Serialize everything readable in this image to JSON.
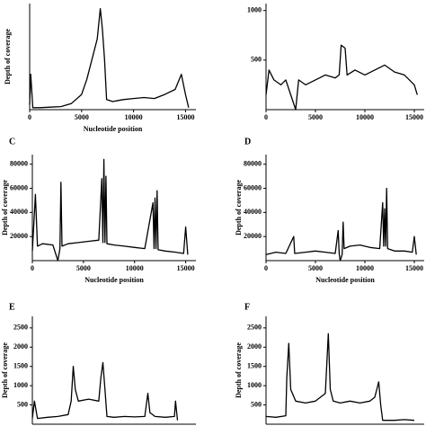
{
  "chart_data": [
    {
      "type": "line",
      "y_label": "Depth of coverage",
      "x_label": "Nucleotide position",
      "color": "#000000",
      "xlim": [
        0,
        16000
      ],
      "ylim": [
        0,
        1050
      ],
      "xticks": [
        0,
        5000,
        10000,
        15000
      ],
      "x": [
        0,
        100,
        300,
        1000,
        2000,
        3000,
        4000,
        5000,
        5500,
        6000,
        6500,
        6800,
        7000,
        7200,
        7400,
        8000,
        9000,
        10000,
        11000,
        12000,
        13000,
        14000,
        14600,
        15000,
        15300
      ],
      "values": [
        50,
        350,
        20,
        20,
        25,
        30,
        60,
        150,
        300,
        500,
        700,
        1000,
        800,
        500,
        100,
        80,
        100,
        110,
        120,
        110,
        150,
        200,
        350,
        150,
        20
      ]
    },
    {
      "type": "line",
      "color": "#000000",
      "xlim": [
        0,
        16000
      ],
      "ylim": [
        0,
        1070
      ],
      "xticks": [
        0,
        5000,
        10000,
        15000
      ],
      "yticks": [
        500,
        1000
      ],
      "x": [
        0,
        300,
        800,
        1500,
        2000,
        2500,
        3000,
        3300,
        4000,
        5000,
        6000,
        7000,
        7400,
        7600,
        8000,
        8200,
        9000,
        10000,
        11000,
        12000,
        13000,
        14000,
        15000,
        15300
      ],
      "values": [
        150,
        400,
        300,
        250,
        300,
        150,
        0,
        300,
        250,
        300,
        350,
        320,
        350,
        650,
        620,
        350,
        400,
        350,
        400,
        450,
        380,
        350,
        250,
        150
      ]
    },
    {
      "type": "line",
      "title": "C",
      "y_label": "Depth of coverage",
      "x_label": "Nucleotide position",
      "color": "#000000",
      "xlim": [
        0,
        16000
      ],
      "ylim": [
        0,
        88000
      ],
      "xticks": [
        0,
        5000,
        10000,
        15000
      ],
      "yticks": [
        20000,
        40000,
        60000,
        80000
      ],
      "x": [
        0,
        300,
        500,
        1000,
        2000,
        2500,
        2700,
        2800,
        2900,
        3500,
        4500,
        5500,
        6500,
        6800,
        6900,
        7000,
        7100,
        7200,
        7300,
        8000,
        9000,
        10000,
        11000,
        11800,
        11900,
        12000,
        12100,
        12200,
        12300,
        13000,
        14000,
        14800,
        15000,
        15200
      ],
      "values": [
        8000,
        55000,
        12000,
        14000,
        13000,
        0,
        10000,
        65000,
        12000,
        14000,
        15000,
        16000,
        17000,
        68000,
        15000,
        84000,
        15000,
        70000,
        14000,
        13000,
        12000,
        11000,
        10000,
        48000,
        10000,
        52000,
        10000,
        58000,
        9000,
        8000,
        7000,
        6000,
        28000,
        5000
      ]
    },
    {
      "type": "line",
      "title": "D",
      "y_label": "Depth of coverage",
      "x_label": "Nucleotide position",
      "color": "#000000",
      "xlim": [
        0,
        16000
      ],
      "ylim": [
        0,
        88000
      ],
      "xticks": [
        0,
        5000,
        10000,
        15000
      ],
      "yticks": [
        20000,
        40000,
        60000,
        80000
      ],
      "x": [
        0,
        1000,
        2000,
        2800,
        2900,
        4000,
        5000,
        6000,
        7000,
        7300,
        7400,
        7500,
        7700,
        7800,
        7900,
        8500,
        9500,
        10500,
        11500,
        11800,
        11900,
        12000,
        12100,
        12200,
        12300,
        13000,
        14000,
        14800,
        15000,
        15200
      ],
      "values": [
        5000,
        7000,
        6000,
        20000,
        6000,
        7000,
        8000,
        7000,
        6000,
        25000,
        6000,
        0,
        5000,
        32000,
        10000,
        12000,
        13000,
        11000,
        10000,
        48000,
        12000,
        43000,
        12000,
        60000,
        10000,
        8000,
        8000,
        7000,
        20000,
        5000
      ]
    },
    {
      "type": "line",
      "title": "E",
      "y_label": "Depth of coverage",
      "color": "#000000",
      "xlim": [
        0,
        16000
      ],
      "ylim": [
        0,
        2800
      ],
      "yticks": [
        500,
        1000,
        1500,
        2000,
        2500
      ],
      "x": [
        0,
        200,
        500,
        1500,
        2500,
        3500,
        3800,
        4000,
        4200,
        4500,
        5500,
        6500,
        6700,
        6900,
        7100,
        7300,
        8000,
        9000,
        10000,
        11000,
        11300,
        11500,
        12000,
        13000,
        13900,
        14000,
        14200
      ],
      "values": [
        150,
        600,
        150,
        180,
        200,
        250,
        600,
        1500,
        900,
        600,
        650,
        600,
        1200,
        1600,
        900,
        200,
        180,
        200,
        190,
        200,
        800,
        300,
        200,
        180,
        200,
        600,
        100
      ]
    },
    {
      "type": "line",
      "title": "F",
      "y_label": "Depth of coverage",
      "color": "#000000",
      "xlim": [
        0,
        16000
      ],
      "ylim": [
        0,
        2800
      ],
      "yticks": [
        500,
        1000,
        1500,
        2000,
        2500
      ],
      "x": [
        0,
        1000,
        2000,
        2100,
        2300,
        2500,
        3000,
        4000,
        5000,
        6000,
        6300,
        6500,
        6800,
        7500,
        8500,
        9500,
        10500,
        11000,
        11400,
        11600,
        11800,
        13000,
        14000,
        15000
      ],
      "values": [
        200,
        180,
        220,
        1200,
        2100,
        900,
        600,
        550,
        600,
        800,
        2350,
        900,
        600,
        550,
        600,
        550,
        600,
        700,
        1100,
        500,
        100,
        100,
        120,
        100
      ]
    }
  ]
}
